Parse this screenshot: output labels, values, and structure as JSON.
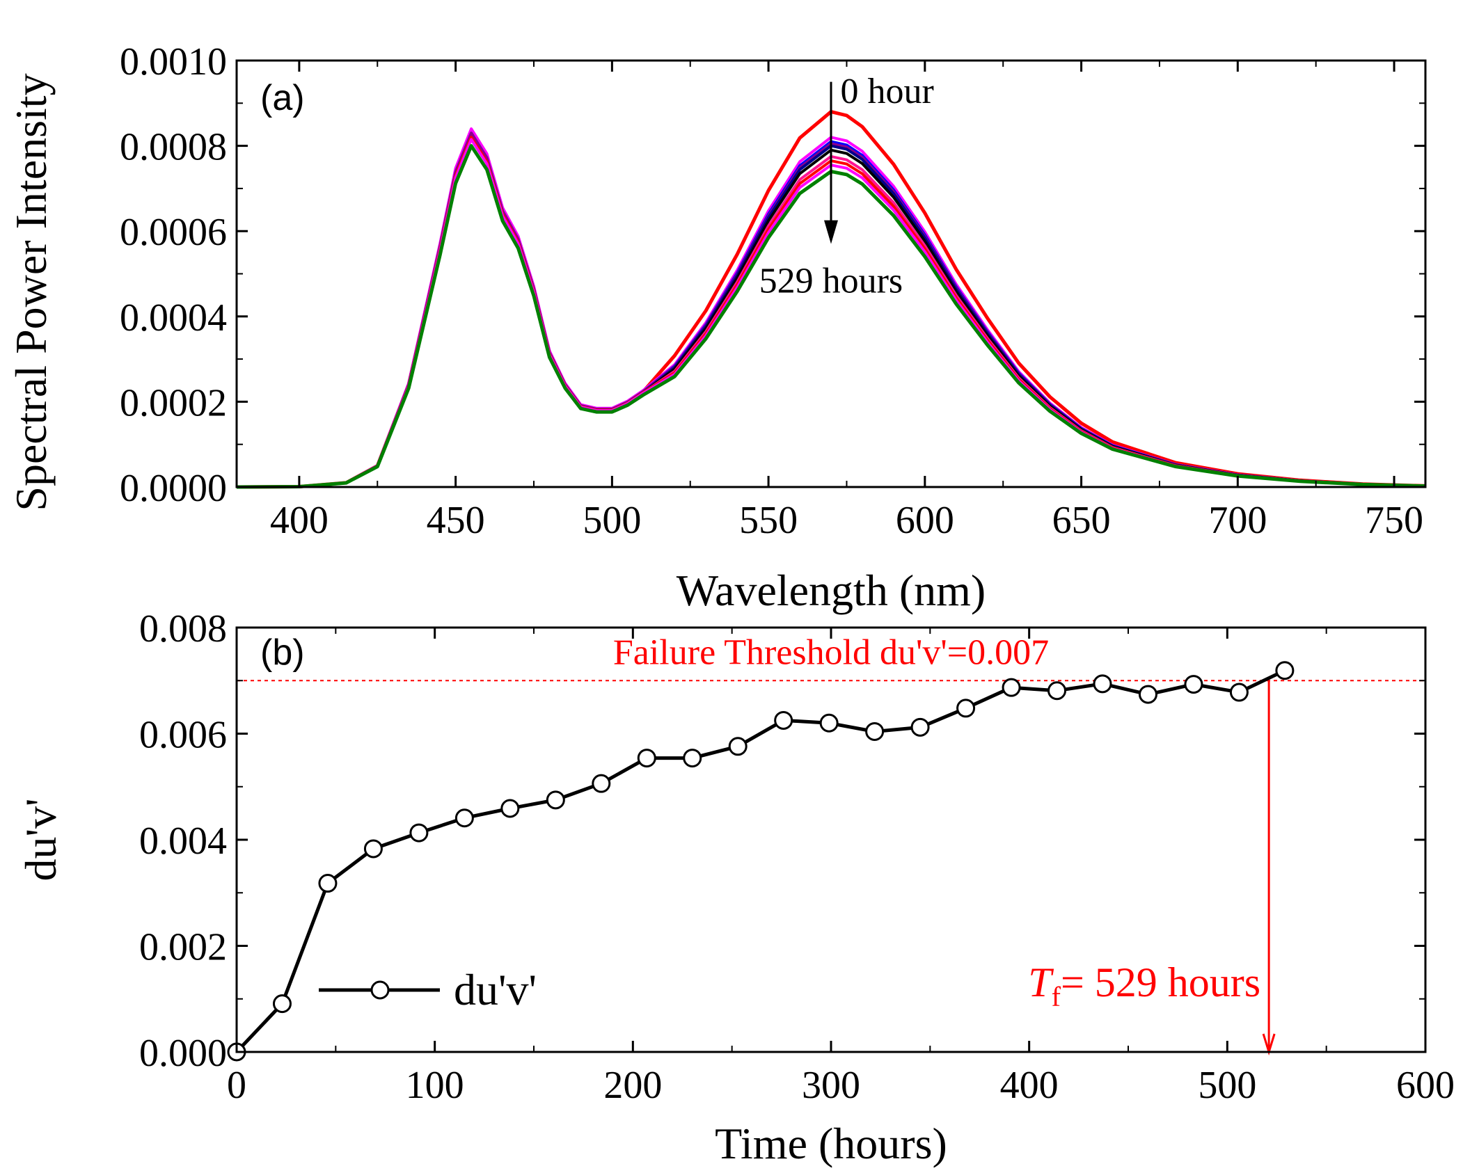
{
  "chart_data": [
    {
      "id": "a",
      "type": "line",
      "panel_label": "(a)",
      "xlabel": "Wavelength (nm)",
      "ylabel": "Spectral Power Intensity",
      "xlim": [
        380,
        760
      ],
      "ylim": [
        0,
        0.001
      ],
      "xticks": [
        400,
        450,
        500,
        550,
        600,
        650,
        700,
        750
      ],
      "xtick_labels": [
        "400",
        "450",
        "500",
        "550",
        "600",
        "650",
        "700",
        "750"
      ],
      "yticks": [
        0,
        0.0002,
        0.0004,
        0.0006,
        0.0008,
        0.001
      ],
      "ytick_labels": [
        "0.0000",
        "0.0002",
        "0.0004",
        "0.0006",
        "0.0008",
        "0.0010"
      ],
      "x": [
        380,
        400,
        415,
        425,
        435,
        445,
        450,
        455,
        460,
        465,
        470,
        475,
        480,
        485,
        490,
        495,
        500,
        505,
        510,
        520,
        530,
        540,
        550,
        560,
        570,
        575,
        580,
        590,
        600,
        610,
        620,
        630,
        640,
        650,
        660,
        680,
        700,
        720,
        740,
        760
      ],
      "base_shape": [
        0,
        0.001,
        0.012,
        0.06,
        0.29,
        0.68,
        0.89,
        1.0,
        0.93,
        0.78,
        0.7,
        0.56,
        0.38,
        0.29,
        0.23,
        0.22,
        0.22,
        0.24,
        0.27,
        0.35,
        0.47,
        0.62,
        0.79,
        0.93,
        1.0,
        0.99,
        0.96,
        0.86,
        0.73,
        0.58,
        0.45,
        0.33,
        0.24,
        0.17,
        0.12,
        0.065,
        0.035,
        0.018,
        0.008,
        0.003
      ],
      "series": [
        {
          "name": "0 hour",
          "color": "#ff0000",
          "blue_peak": 0.00083,
          "yellow_peak": 0.00088
        },
        {
          "name": "",
          "color": "#ff00ff",
          "blue_peak": 0.00084,
          "yellow_peak": 0.00082
        },
        {
          "name": "",
          "color": "#0000ff",
          "blue_peak": 0.00083,
          "yellow_peak": 0.00081
        },
        {
          "name": "",
          "color": "#8b008b",
          "blue_peak": 0.00083,
          "yellow_peak": 0.000805
        },
        {
          "name": "",
          "color": "#00008b",
          "blue_peak": 0.00082,
          "yellow_peak": 0.0008
        },
        {
          "name": "",
          "color": "#000000",
          "blue_peak": 0.00082,
          "yellow_peak": 0.00079
        },
        {
          "name": "",
          "color": "#ff1493",
          "blue_peak": 0.00082,
          "yellow_peak": 0.000775
        },
        {
          "name": "",
          "color": "#ff0000",
          "blue_peak": 0.00082,
          "yellow_peak": 0.000765
        },
        {
          "name": "",
          "color": "#ff00ff",
          "blue_peak": 0.000815,
          "yellow_peak": 0.000755
        },
        {
          "name": "529 hours",
          "color": "#008000",
          "blue_peak": 0.0008,
          "yellow_peak": 0.00074
        }
      ],
      "arrow": {
        "x": 570,
        "y_from": 0.00095,
        "y_to": 0.00057
      },
      "annotations": [
        {
          "text": "0 hour",
          "x": 573,
          "y": 0.00093
        },
        {
          "text": "529 hours",
          "x": 547,
          "y": 0.000485
        }
      ]
    },
    {
      "id": "b",
      "type": "line",
      "panel_label": "(b)",
      "xlabel": "Time (hours)",
      "ylabel": "du'v'",
      "xlim": [
        0,
        600
      ],
      "ylim": [
        0,
        0.008
      ],
      "xticks": [
        0,
        100,
        200,
        300,
        400,
        500,
        600
      ],
      "xtick_labels": [
        "0",
        "100",
        "200",
        "300",
        "400",
        "500",
        "600"
      ],
      "yticks": [
        0,
        0.002,
        0.004,
        0.006,
        0.008
      ],
      "ytick_labels": [
        "0.000",
        "0.002",
        "0.004",
        "0.006",
        "0.008"
      ],
      "series": [
        {
          "name": "du'v'",
          "color": "#000000",
          "x": [
            0,
            23,
            46,
            69,
            92,
            115,
            138,
            161,
            184,
            207,
            230,
            253,
            276,
            299,
            322,
            345,
            368,
            391,
            414,
            437,
            460,
            483,
            506,
            529
          ],
          "y": [
            0.0,
            0.00091,
            0.00318,
            0.00383,
            0.00413,
            0.00441,
            0.00459,
            0.00475,
            0.00506,
            0.00554,
            0.00554,
            0.00576,
            0.00625,
            0.0062,
            0.00604,
            0.00612,
            0.00648,
            0.00687,
            0.00681,
            0.00694,
            0.00674,
            0.00693,
            0.00678,
            0.00719
          ]
        }
      ],
      "legend": {
        "label": "du'v'",
        "position": "lower-left"
      },
      "threshold": {
        "value": 0.007,
        "label": "Failure Threshold du'v'=0.007",
        "color": "#ff0000"
      },
      "failure_marker": {
        "x": 521,
        "color": "#ff0000",
        "label_main": "T",
        "label_sub": "f",
        "label_rest": "= 529 hours"
      }
    }
  ]
}
